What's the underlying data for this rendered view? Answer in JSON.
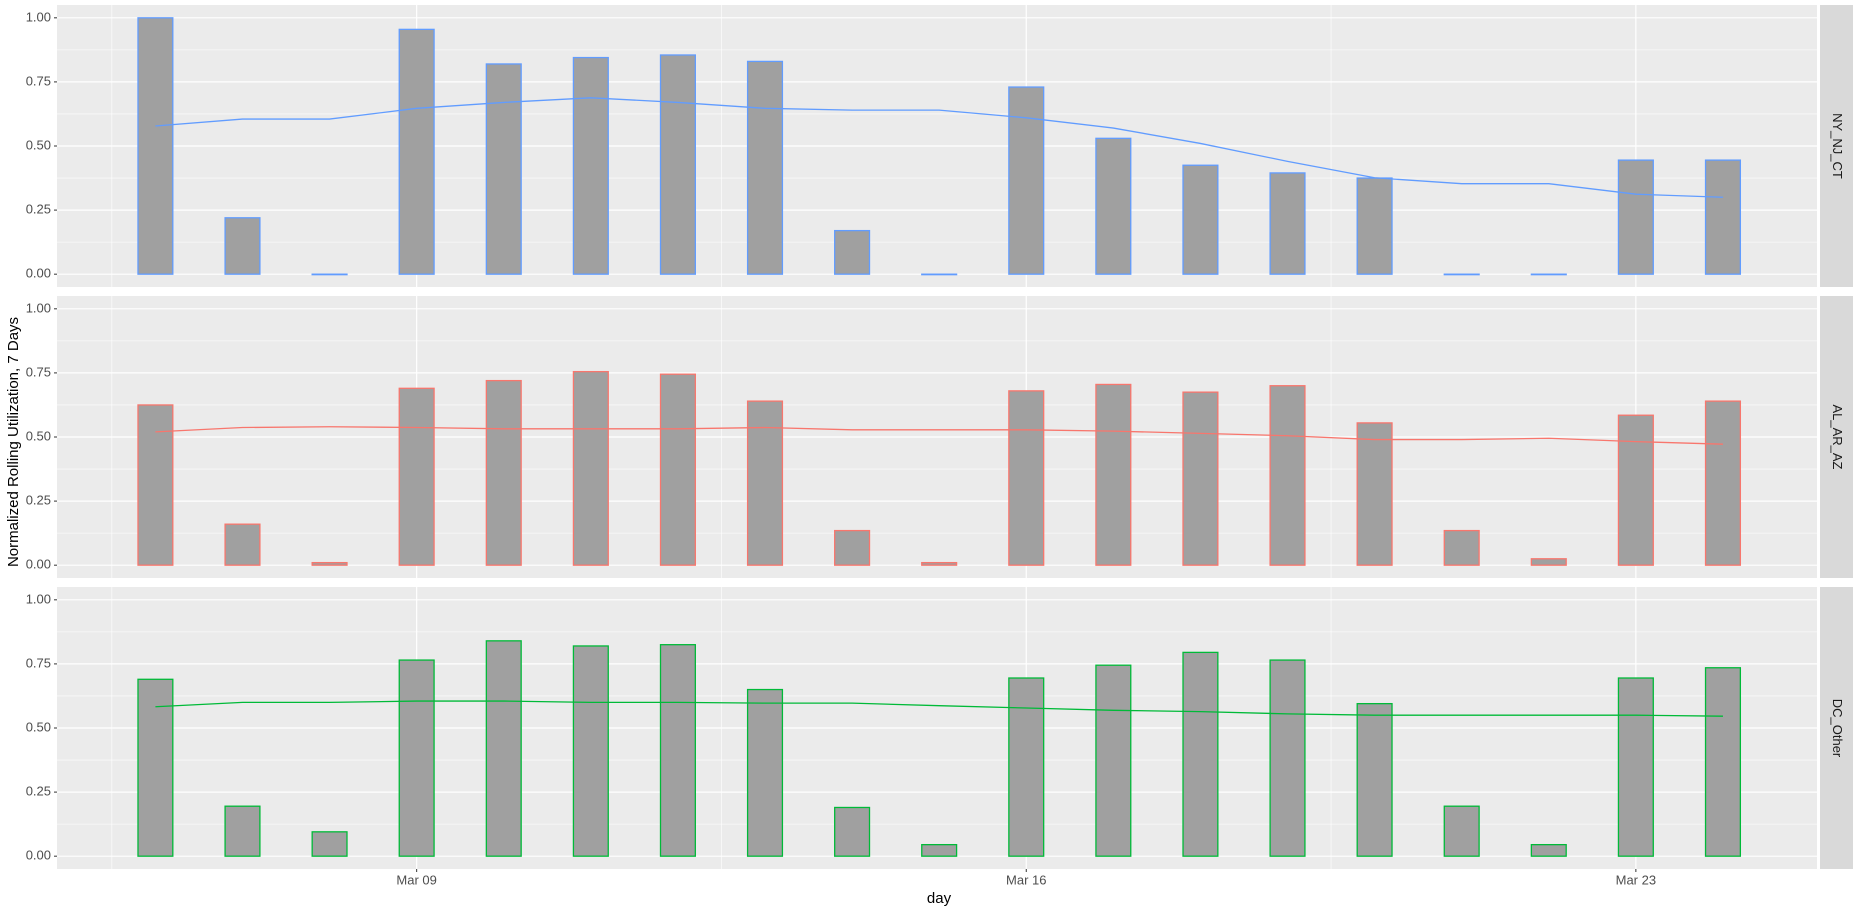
{
  "chart_data": {
    "type": "bar",
    "x_label": "day",
    "y_label": "Normalized Rolling Utilization, 7 Days",
    "x": [
      "Mar 06",
      "Mar 07",
      "Mar 08",
      "Mar 09",
      "Mar 10",
      "Mar 11",
      "Mar 12",
      "Mar 13",
      "Mar 14",
      "Mar 15",
      "Mar 16",
      "Mar 17",
      "Mar 18",
      "Mar 19",
      "Mar 20",
      "Mar 21",
      "Mar 22",
      "Mar 23",
      "Mar 24"
    ],
    "xticks": [
      "Mar 09",
      "Mar 16",
      "Mar 23"
    ],
    "ylim": [
      -0.05,
      1.05
    ],
    "yticks": [
      {
        "value": 0,
        "label": "0.00"
      },
      {
        "value": 0.25,
        "label": "0.25"
      },
      {
        "value": 0.5,
        "label": "0.50"
      },
      {
        "value": 0.75,
        "label": "0.75"
      },
      {
        "value": 1,
        "label": "1.00"
      }
    ],
    "grid": true,
    "bar_fill": "#a0a0a0",
    "panels": [
      {
        "label": "NY_NJ_CT",
        "color": "#619cff",
        "values": [
          1.0,
          0.22,
          0.0,
          0.955,
          0.82,
          0.845,
          0.855,
          0.83,
          0.17,
          0.0,
          0.73,
          0.53,
          0.425,
          0.395,
          0.375,
          0.0,
          0.0,
          0.445,
          0.445
        ],
        "rolling": [
          0.578,
          0.605,
          0.605,
          0.647,
          0.67,
          0.688,
          0.67,
          0.647,
          0.64,
          0.64,
          0.61,
          0.57,
          0.51,
          0.44,
          0.376,
          0.353,
          0.353,
          0.312,
          0.3
        ]
      },
      {
        "label": "AL_AR_AZ",
        "color": "#f8766d",
        "values": [
          0.625,
          0.16,
          0.01,
          0.69,
          0.72,
          0.755,
          0.745,
          0.64,
          0.135,
          0.01,
          0.68,
          0.705,
          0.675,
          0.7,
          0.555,
          0.135,
          0.025,
          0.585,
          0.64
        ],
        "rolling": [
          0.52,
          0.537,
          0.54,
          0.537,
          0.532,
          0.532,
          0.532,
          0.537,
          0.528,
          0.528,
          0.528,
          0.523,
          0.514,
          0.505,
          0.49,
          0.49,
          0.495,
          0.482,
          0.472
        ]
      },
      {
        "label": "DC_Other",
        "color": "#00ba38",
        "values": [
          0.69,
          0.195,
          0.095,
          0.765,
          0.84,
          0.82,
          0.825,
          0.65,
          0.19,
          0.045,
          0.695,
          0.745,
          0.795,
          0.765,
          0.595,
          0.195,
          0.045,
          0.695,
          0.735
        ],
        "rolling": [
          0.583,
          0.6,
          0.6,
          0.605,
          0.605,
          0.6,
          0.6,
          0.597,
          0.597,
          0.587,
          0.578,
          0.569,
          0.564,
          0.555,
          0.55,
          0.55,
          0.55,
          0.55,
          0.546
        ]
      }
    ]
  }
}
